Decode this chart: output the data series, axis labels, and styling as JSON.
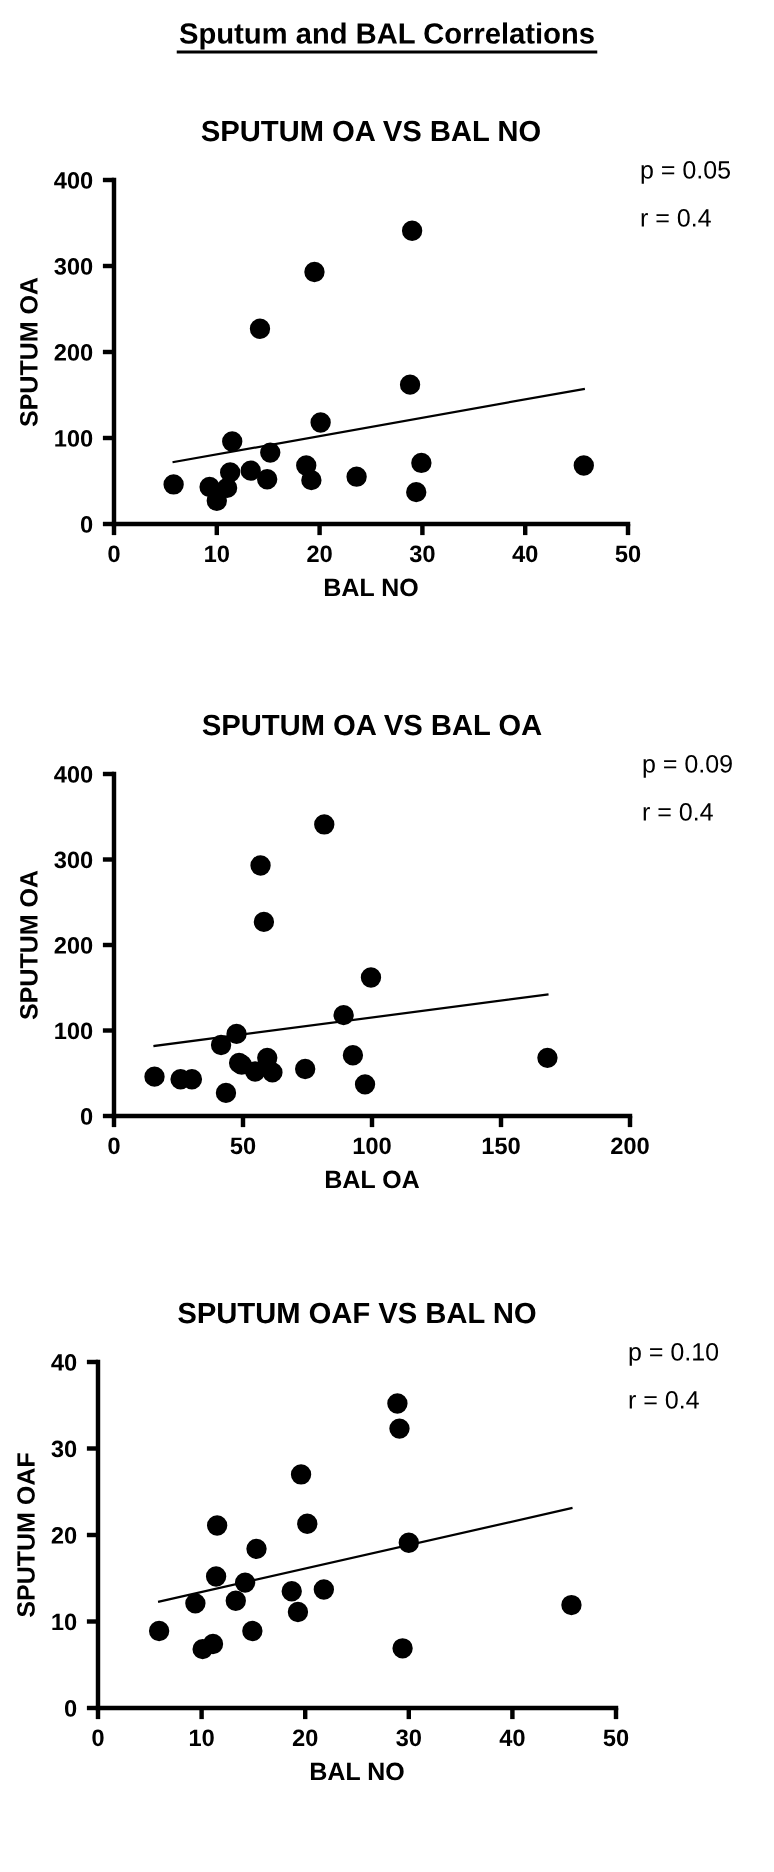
{
  "chart_data": [
    {
      "type": "scatter",
      "title": "SPUTUM OA VS BAL NO",
      "xlabel": "BAL NO",
      "ylabel": "SPUTUM OA",
      "xlim": [
        0,
        50
      ],
      "ylim": [
        0,
        400
      ],
      "xticks": [
        0,
        10,
        20,
        30,
        40,
        50
      ],
      "yticks": [
        0,
        100,
        200,
        300,
        400
      ],
      "grid": false,
      "annotations": [
        "p = 0.05",
        "r = 0.4"
      ],
      "series": [
        {
          "type": "scatter",
          "marker": "circle",
          "color": "#000000",
          "x": [
            5.8,
            9.3,
            10.0,
            11.0,
            11.3,
            11.5,
            13.3,
            14.2,
            14.9,
            15.2,
            18.7,
            19.2,
            19.5,
            20.1,
            23.6,
            28.8,
            29.0,
            29.4,
            29.9,
            45.7
          ],
          "values": [
            46,
            43,
            27,
            42,
            60,
            96,
            62,
            227,
            52,
            83,
            68,
            51,
            293,
            118,
            55,
            162,
            341,
            37,
            71,
            68
          ]
        },
        {
          "type": "line",
          "color": "#000000",
          "x": [
            5.8,
            45.7
          ],
          "values": [
            72,
            157
          ]
        }
      ]
    },
    {
      "type": "scatter",
      "title": "SPUTUM OA VS BAL OA",
      "xlabel": "BAL OA",
      "ylabel": "SPUTUM OA",
      "xlim": [
        0,
        200
      ],
      "ylim": [
        0,
        400
      ],
      "xticks": [
        0,
        50,
        100,
        150,
        200
      ],
      "yticks": [
        0,
        100,
        200,
        300,
        400
      ],
      "grid": false,
      "annotations": [
        "p = 0.09",
        "r = 0.4"
      ],
      "series": [
        {
          "type": "scatter",
          "marker": "circle",
          "color": "#000000",
          "x": [
            15.7,
            25.8,
            30.2,
            41.5,
            43.4,
            47.5,
            48.5,
            49.5,
            54.7,
            56.8,
            58.1,
            59.4,
            61.4,
            74.1,
            81.5,
            89.0,
            92.6,
            97.3,
            99.6,
            168.0
          ],
          "values": [
            46,
            43,
            43,
            83,
            27,
            96,
            62,
            60,
            52,
            293,
            227,
            68,
            51,
            55,
            341,
            118,
            71,
            37,
            162,
            68
          ]
        },
        {
          "type": "line",
          "color": "#000000",
          "x": [
            15.7,
            168.0
          ],
          "values": [
            82,
            142
          ]
        }
      ]
    },
    {
      "type": "scatter",
      "title": "SPUTUM OAF VS BAL NO",
      "xlabel": "BAL NO",
      "ylabel": "SPUTUM OAF",
      "xlim": [
        0,
        50
      ],
      "ylim": [
        0,
        40
      ],
      "xticks": [
        0,
        10,
        20,
        30,
        40,
        50
      ],
      "yticks": [
        0,
        10,
        20,
        30,
        40
      ],
      "grid": false,
      "annotations": [
        "p = 0.10",
        "r = 0.4"
      ],
      "series": [
        {
          "type": "scatter",
          "marker": "circle",
          "color": "#000000",
          "x": [
            5.9,
            9.4,
            10.1,
            11.1,
            11.4,
            11.5,
            13.3,
            14.2,
            14.9,
            15.3,
            18.7,
            19.3,
            19.6,
            20.2,
            21.8,
            28.9,
            29.1,
            29.4,
            30.0,
            45.7
          ],
          "values": [
            8.9,
            12.1,
            6.8,
            7.4,
            15.2,
            21.1,
            12.4,
            14.5,
            8.9,
            18.4,
            13.5,
            11.1,
            27.0,
            21.3,
            13.7,
            35.2,
            32.3,
            6.9,
            19.1,
            11.9
          ]
        },
        {
          "type": "line",
          "color": "#000000",
          "x": [
            5.9,
            45.7
          ],
          "values": [
            12.3,
            23.1
          ]
        }
      ]
    },
    {
      "type": "other",
      "title": "Sputum and BAL Correlations"
    }
  ]
}
